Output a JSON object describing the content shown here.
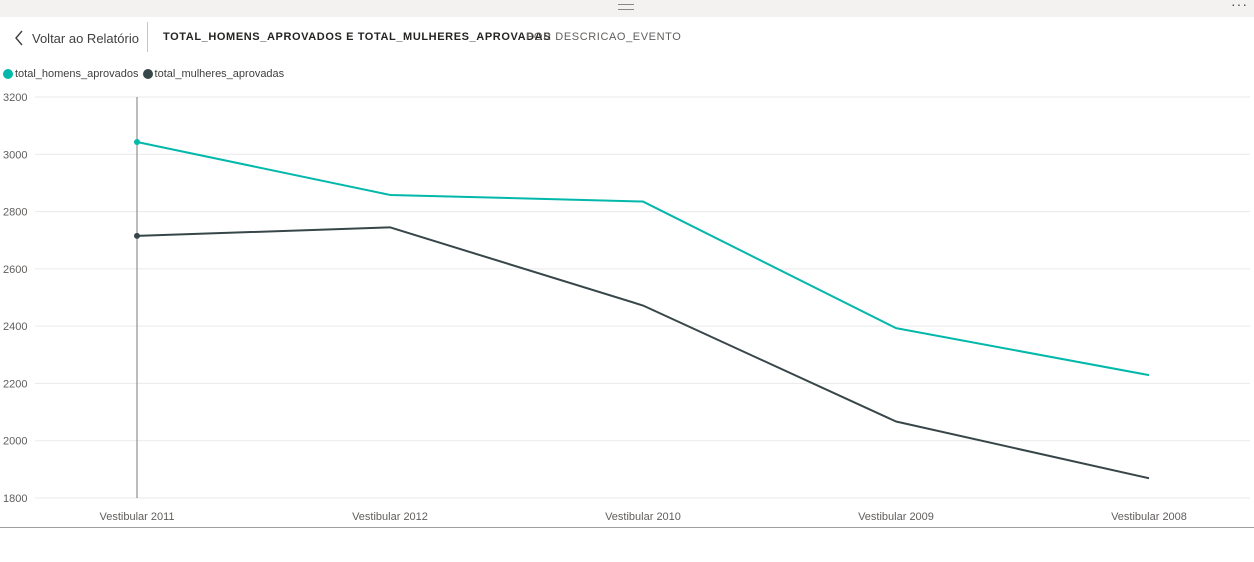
{
  "header": {
    "back_label": "Voltar ao Relatório",
    "title": "TOTAL_HOMENS_APROVADOS E TOTAL_MULHERES_APROVADAS",
    "subtitle": "POR DESCRICAO_EVENTO",
    "more_label": "···"
  },
  "colors": {
    "homens": "#01b8aa",
    "mulheres": "#374649",
    "grid": "#eaeaea",
    "cursor": "#7a7a7a"
  },
  "chart_data": {
    "type": "line",
    "categories": [
      "Vestibular 2011",
      "Vestibular 2012",
      "Vestibular 2010",
      "Vestibular 2009",
      "Vestibular 2008"
    ],
    "series": [
      {
        "name": "total_homens_aprovados",
        "values": [
          3043,
          2858,
          2835,
          2393,
          2229
        ]
      },
      {
        "name": "total_mulheres_aprovadas",
        "values": [
          2715,
          2745,
          2472,
          2067,
          1869
        ]
      }
    ],
    "yticks": [
      3200,
      3000,
      2800,
      2600,
      2400,
      2200,
      2000,
      1800
    ],
    "ylim": [
      1800,
      3200
    ],
    "grid": true,
    "legend_position": "top-left",
    "highlighted_category": "Vestibular 2011"
  }
}
